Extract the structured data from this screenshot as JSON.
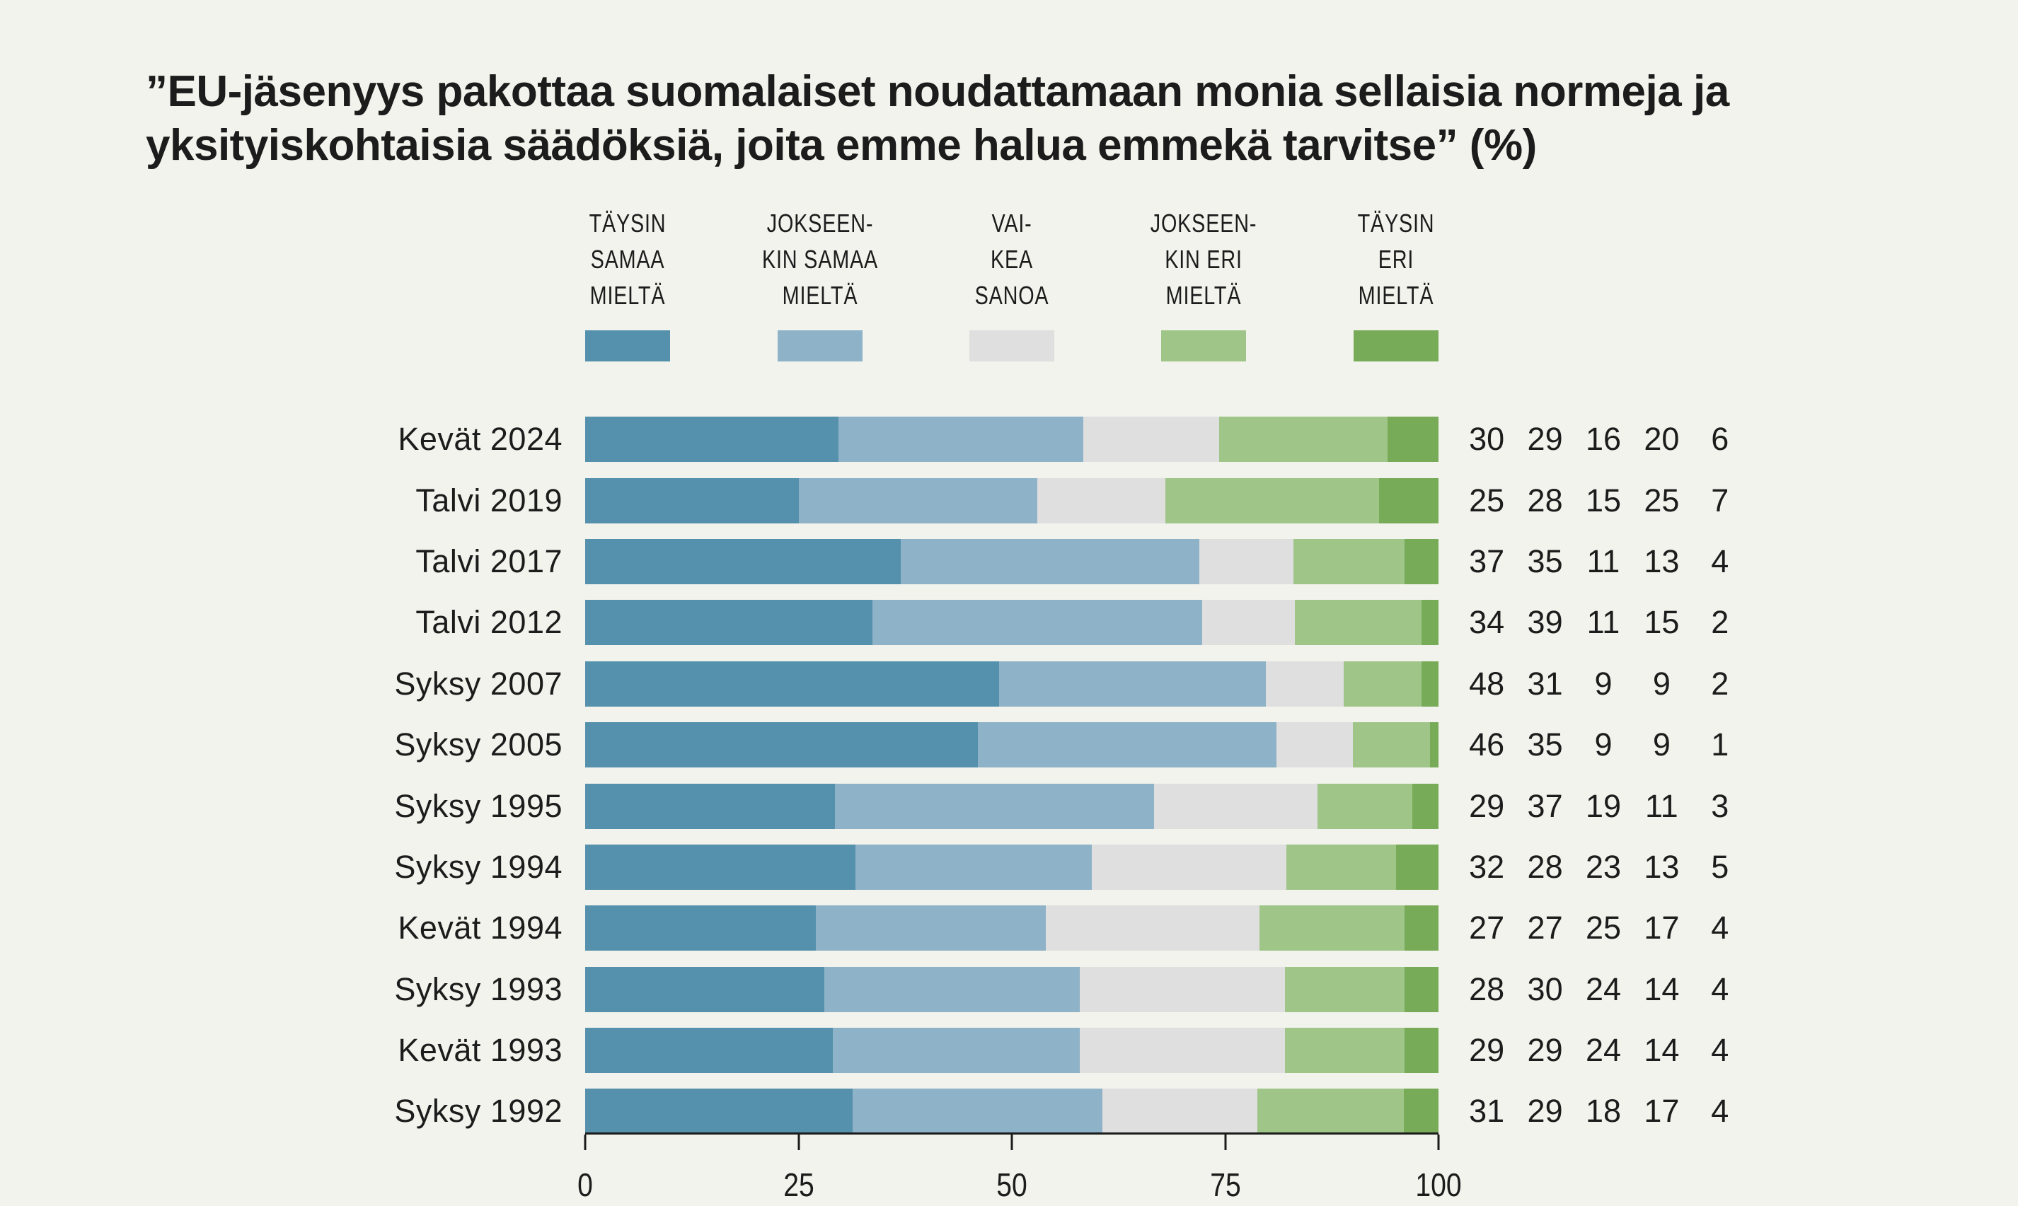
{
  "title": "”EU-jäsenyys pakottaa suomalaiset noudattamaan monia sellaisia normeja ja\nyksityiskohtaisia säädöksiä, joita emme halua emmekä tarvitse” (%)",
  "colors": {
    "background": "#f2f3ec",
    "text": "#1c1c1c",
    "taysin_samaa_mielta": "#5591ad",
    "jokseenkin_samaa_mielta": "#8eb2c7",
    "vaikea_sanoa": "#dfdfdf",
    "jokseenkin_eri_mielta": "#9fc688",
    "taysin_eri_mielta": "#77ab58"
  },
  "legend": {
    "items": [
      {
        "label": "TÄYSIN\nSAMAA\nMIELTÄ",
        "color": "#5591ad",
        "center_percent": 5
      },
      {
        "label": "JOKSEEN-\nKIN SAMAA\nMIELTÄ",
        "color": "#8eb2c7",
        "center_percent": 27.5
      },
      {
        "label": "VAI-\nKEA\nSANOA",
        "color": "#dfdfdf",
        "center_percent": 50
      },
      {
        "label": "JOKSEEN-\nKIN ERI\nMIELTÄ",
        "color": "#9fc688",
        "center_percent": 72.5
      },
      {
        "label": "TÄYSIN\nERI\nMIELTÄ",
        "color": "#77ab58",
        "center_percent": 95
      }
    ]
  },
  "chart_data": {
    "type": "bar",
    "orientation": "horizontal",
    "stacked": true,
    "title": "”EU-jäsenyys pakottaa suomalaiset noudattamaan monia sellaisia normeja ja yksityiskohtaisia säädöksiä, joita emme halua emmekä tarvitse” (%)",
    "categories": [
      "Kevät 2024",
      "Talvi 2019",
      "Talvi 2017",
      "Talvi 2012",
      "Syksy 2007",
      "Syksy 2005",
      "Syksy 1995",
      "Syksy 1994",
      "Kevät 1994",
      "Syksy 1993",
      "Kevät 1993",
      "Syksy 1992"
    ],
    "series": [
      {
        "name": "TÄYSIN SAMAA MIELTÄ",
        "color": "#5591ad",
        "values": [
          30,
          25,
          37,
          34,
          48,
          46,
          29,
          32,
          27,
          28,
          29,
          31
        ]
      },
      {
        "name": "JOKSEENKIN SAMAA MIELTÄ",
        "color": "#8eb2c7",
        "values": [
          29,
          28,
          35,
          39,
          31,
          35,
          37,
          28,
          27,
          30,
          29,
          29
        ]
      },
      {
        "name": "VAIKEA SANOA",
        "color": "#dfdfdf",
        "values": [
          16,
          15,
          11,
          11,
          9,
          9,
          19,
          23,
          25,
          24,
          24,
          18
        ]
      },
      {
        "name": "JOKSEENKIN ERI MIELTÄ",
        "color": "#9fc688",
        "values": [
          20,
          25,
          13,
          15,
          9,
          9,
          11,
          13,
          17,
          14,
          14,
          17
        ]
      },
      {
        "name": "TÄYSIN ERI MIELTÄ",
        "color": "#77ab58",
        "values": [
          6,
          7,
          4,
          2,
          2,
          1,
          3,
          5,
          4,
          4,
          4,
          4
        ]
      }
    ],
    "x_ticks": [
      0,
      25,
      50,
      75,
      100
    ],
    "xlim": [
      0,
      100
    ],
    "legend_position": "top",
    "grid": false,
    "value_labels_shown": true
  }
}
